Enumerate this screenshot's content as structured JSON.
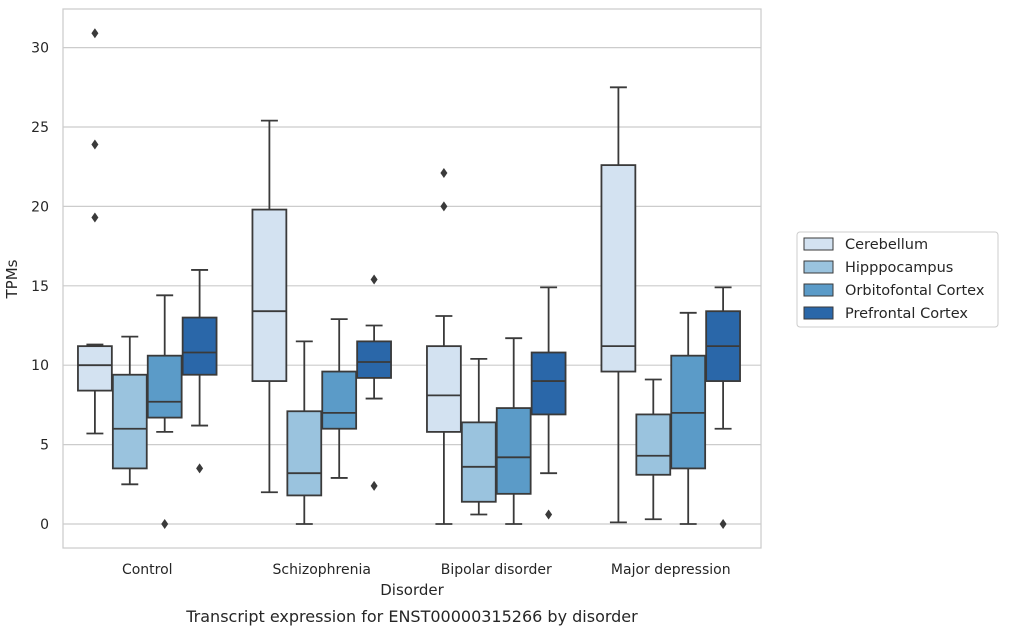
{
  "chart_data": {
    "type": "box",
    "caption": "Transcript expression for ENST00000315266 by disorder",
    "xlabel": "Disorder",
    "ylabel": "TPMs",
    "ylim": [
      -1.5,
      32.5
    ],
    "yticks": [
      0,
      5,
      10,
      15,
      20,
      25,
      30
    ],
    "grid": "horizontal",
    "legend_position": "right",
    "categories": [
      "Control",
      "Schizophrenia",
      "Bipolar disorder",
      "Major depression"
    ],
    "series": [
      {
        "name": "Cerebellum",
        "color": "#d3e2f1",
        "boxes": [
          {
            "whisker_low": 5.7,
            "q1": 8.4,
            "median": 10.0,
            "q3": 11.2,
            "whisker_high": 11.3,
            "outliers": [
              19.3,
              23.9,
              30.9
            ]
          },
          {
            "whisker_low": 2.0,
            "q1": 9.0,
            "median": 13.4,
            "q3": 19.8,
            "whisker_high": 25.4,
            "outliers": []
          },
          {
            "whisker_low": 0.0,
            "q1": 5.8,
            "median": 8.1,
            "q3": 11.2,
            "whisker_high": 13.1,
            "outliers": [
              20.0,
              22.1
            ]
          },
          {
            "whisker_low": 0.1,
            "q1": 9.6,
            "median": 11.2,
            "q3": 22.6,
            "whisker_high": 27.5,
            "outliers": []
          }
        ]
      },
      {
        "name": "Hipppocampus",
        "color": "#9ac3de",
        "boxes": [
          {
            "whisker_low": 2.5,
            "q1": 3.5,
            "median": 6.0,
            "q3": 9.4,
            "whisker_high": 11.8,
            "outliers": []
          },
          {
            "whisker_low": 0.0,
            "q1": 1.8,
            "median": 3.2,
            "q3": 7.1,
            "whisker_high": 11.5,
            "outliers": []
          },
          {
            "whisker_low": 0.6,
            "q1": 1.4,
            "median": 3.6,
            "q3": 6.4,
            "whisker_high": 10.4,
            "outliers": []
          },
          {
            "whisker_low": 0.3,
            "q1": 3.1,
            "median": 4.3,
            "q3": 6.9,
            "whisker_high": 9.1,
            "outliers": []
          }
        ]
      },
      {
        "name": "Orbitofontal Cortex",
        "color": "#5b9bc8",
        "boxes": [
          {
            "whisker_low": 5.8,
            "q1": 6.7,
            "median": 7.7,
            "q3": 10.6,
            "whisker_high": 14.4,
            "outliers": [
              0.0
            ]
          },
          {
            "whisker_low": 2.9,
            "q1": 6.0,
            "median": 7.0,
            "q3": 9.6,
            "whisker_high": 12.9,
            "outliers": []
          },
          {
            "whisker_low": 0.0,
            "q1": 1.9,
            "median": 4.2,
            "q3": 7.3,
            "whisker_high": 11.7,
            "outliers": []
          },
          {
            "whisker_low": 0.0,
            "q1": 3.5,
            "median": 7.0,
            "q3": 10.6,
            "whisker_high": 13.3,
            "outliers": []
          }
        ]
      },
      {
        "name": "Prefrontal Cortex",
        "color": "#2a67a9",
        "boxes": [
          {
            "whisker_low": 6.2,
            "q1": 9.4,
            "median": 10.8,
            "q3": 13.0,
            "whisker_high": 16.0,
            "outliers": [
              3.5
            ]
          },
          {
            "whisker_low": 7.9,
            "q1": 9.2,
            "median": 10.2,
            "q3": 11.5,
            "whisker_high": 12.5,
            "outliers": [
              2.4,
              15.4
            ]
          },
          {
            "whisker_low": 3.2,
            "q1": 6.9,
            "median": 9.0,
            "q3": 10.8,
            "whisker_high": 14.9,
            "outliers": [
              0.6
            ]
          },
          {
            "whisker_low": 6.0,
            "q1": 9.0,
            "median": 11.2,
            "q3": 13.4,
            "whisker_high": 14.9,
            "outliers": [
              0.0
            ]
          }
        ]
      }
    ]
  }
}
